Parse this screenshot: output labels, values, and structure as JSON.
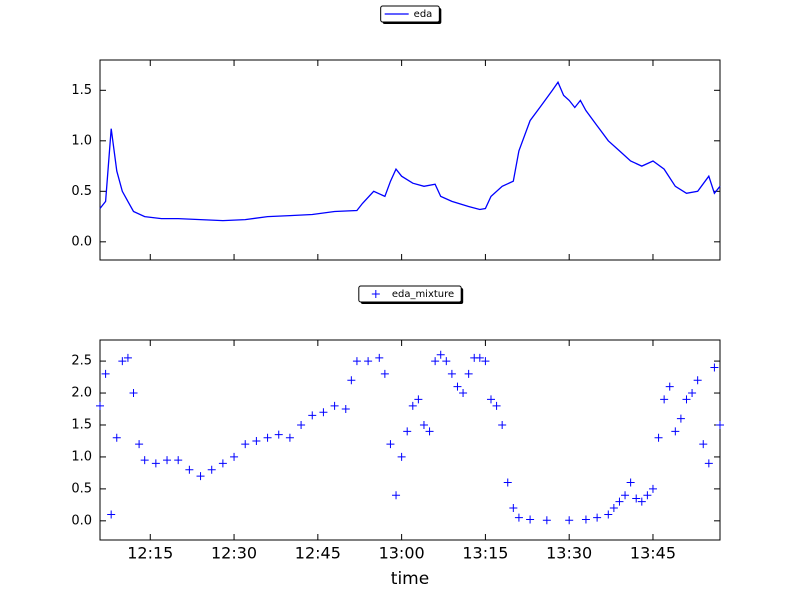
{
  "chart_data": [
    {
      "type": "line",
      "legend": "upper center",
      "sharex": true,
      "x": [
        "12:06",
        "12:07",
        "12:08",
        "12:09",
        "12:10",
        "12:11",
        "12:12",
        "12:14",
        "12:17",
        "12:20",
        "12:24",
        "12:28",
        "12:32",
        "12:36",
        "12:40",
        "12:44",
        "12:48",
        "12:52",
        "12:53",
        "12:55",
        "12:57",
        "12:58",
        "12:59",
        "13:00",
        "13:02",
        "13:04",
        "13:06",
        "13:07",
        "13:09",
        "13:12",
        "13:14",
        "13:15",
        "13:16",
        "13:18",
        "13:20",
        "13:21",
        "13:23",
        "13:25",
        "13:27",
        "13:28",
        "13:29",
        "13:30",
        "13:31",
        "13:32",
        "13:33",
        "13:35",
        "13:37",
        "13:39",
        "13:41",
        "13:43",
        "13:45",
        "13:47",
        "13:49",
        "13:51",
        "13:53",
        "13:55",
        "13:56",
        "13:57"
      ],
      "series": [
        {
          "name": "eda",
          "color": "#0000ff",
          "values": [
            0.33,
            0.4,
            1.12,
            0.7,
            0.5,
            0.4,
            0.3,
            0.25,
            0.23,
            0.23,
            0.22,
            0.21,
            0.22,
            0.25,
            0.26,
            0.27,
            0.3,
            0.31,
            0.38,
            0.5,
            0.45,
            0.6,
            0.72,
            0.65,
            0.58,
            0.55,
            0.57,
            0.45,
            0.4,
            0.35,
            0.32,
            0.33,
            0.45,
            0.55,
            0.6,
            0.9,
            1.2,
            1.35,
            1.5,
            1.58,
            1.45,
            1.4,
            1.33,
            1.4,
            1.3,
            1.15,
            1.0,
            0.9,
            0.8,
            0.75,
            0.8,
            0.72,
            0.55,
            0.48,
            0.5,
            0.65,
            0.48,
            0.55
          ]
        }
      ],
      "xlim": [
        "12:06",
        "13:57"
      ],
      "ylim": [
        -0.18,
        1.8
      ],
      "yticks": [
        {
          "value": 0,
          "label": "0.0"
        },
        0.5,
        {
          "value": 1,
          "label": "1.0"
        },
        1.5
      ]
    },
    {
      "type": "scatter",
      "legend": "upper center",
      "x": [
        "12:06",
        "12:07",
        "12:08",
        "12:09",
        "12:10",
        "12:11",
        "12:12",
        "12:13",
        "12:14",
        "12:16",
        "12:18",
        "12:20",
        "12:22",
        "12:24",
        "12:26",
        "12:28",
        "12:30",
        "12:32",
        "12:34",
        "12:36",
        "12:38",
        "12:40",
        "12:42",
        "12:44",
        "12:46",
        "12:48",
        "12:50",
        "12:51",
        "12:52",
        "12:54",
        "12:56",
        "12:57",
        "12:58",
        "12:59",
        "13:00",
        "13:01",
        "13:02",
        "13:03",
        "13:04",
        "13:05",
        "13:06",
        "13:07",
        "13:08",
        "13:09",
        "13:10",
        "13:11",
        "13:12",
        "13:13",
        "13:14",
        "13:15",
        "13:16",
        "13:17",
        "13:18",
        "13:19",
        "13:20",
        "13:21",
        "13:23",
        "13:26",
        "13:30",
        "13:33",
        "13:35",
        "13:37",
        "13:38",
        "13:39",
        "13:40",
        "13:41",
        "13:42",
        "13:43",
        "13:44",
        "13:45",
        "13:46",
        "13:47",
        "13:48",
        "13:49",
        "13:50",
        "13:51",
        "13:52",
        "13:53",
        "13:54",
        "13:55",
        "13:56",
        "13:57"
      ],
      "series": [
        {
          "name": "eda_mixture",
          "color": "#0000ff",
          "marker": "+",
          "values": [
            1.8,
            2.3,
            0.1,
            1.3,
            2.5,
            2.55,
            2.0,
            1.2,
            0.95,
            0.9,
            0.95,
            0.95,
            0.8,
            0.7,
            0.8,
            0.9,
            1.0,
            1.2,
            1.25,
            1.3,
            1.35,
            1.3,
            1.5,
            1.65,
            1.7,
            1.8,
            1.75,
            2.2,
            2.5,
            2.5,
            2.55,
            2.3,
            1.2,
            0.4,
            1.0,
            1.4,
            1.8,
            1.9,
            1.5,
            1.4,
            2.5,
            2.6,
            2.5,
            2.3,
            2.1,
            2.0,
            2.3,
            2.55,
            2.55,
            2.5,
            1.9,
            1.8,
            1.5,
            0.6,
            0.2,
            0.05,
            0.02,
            0.01,
            0.01,
            0.02,
            0.05,
            0.1,
            0.2,
            0.3,
            0.4,
            0.6,
            0.35,
            0.3,
            0.4,
            0.5,
            1.3,
            1.9,
            2.1,
            1.4,
            1.6,
            1.9,
            2.0,
            2.2,
            1.2,
            0.9,
            2.4,
            1.5
          ]
        }
      ],
      "xlim": [
        "12:06",
        "13:57"
      ],
      "ylim": [
        -0.3,
        2.83
      ],
      "yticks": [
        {
          "value": 0,
          "label": "0.0"
        },
        0.5,
        {
          "value": 1,
          "label": "1.0"
        },
        1.5,
        {
          "value": 2,
          "label": "2.0"
        },
        2.5
      ],
      "xticks": [
        "12:15",
        "12:30",
        "12:45",
        "13:00",
        "13:15",
        "13:30",
        "13:45"
      ],
      "xlabel": "time"
    }
  ]
}
